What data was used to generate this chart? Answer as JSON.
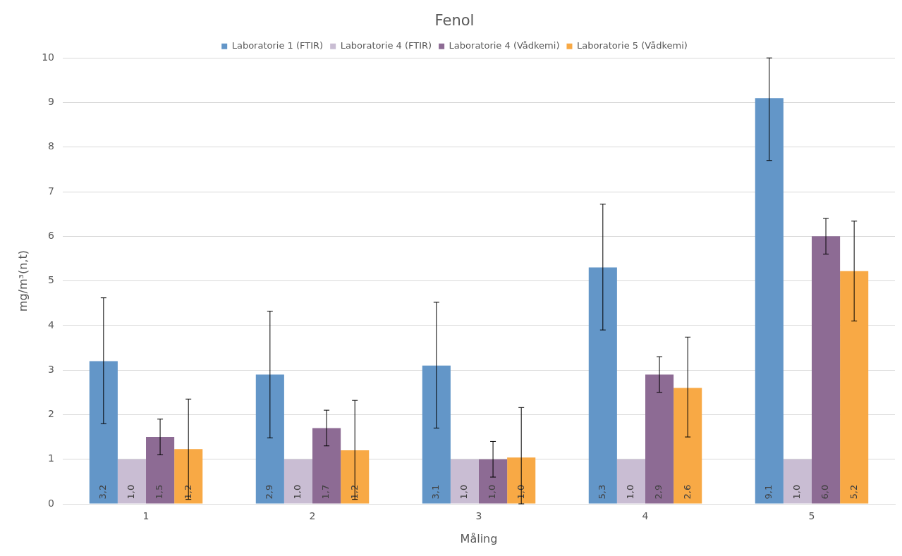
{
  "chart_data": {
    "type": "bar",
    "title": "Fenol",
    "xlabel": "Måling",
    "ylabel": "mg/m³(n,t)",
    "categories": [
      "1",
      "2",
      "3",
      "4",
      "5"
    ],
    "series": [
      {
        "name": "Laboratorie 1 (FTIR)",
        "color": "#6396c8",
        "values": [
          3.2,
          2.9,
          3.1,
          5.3,
          9.1
        ],
        "value_labels": [
          "3,2",
          "2,9",
          "3,1",
          "5,3",
          "9,1"
        ],
        "errors": [
          [
            1.8,
            4.62
          ],
          [
            1.48,
            4.32
          ],
          [
            1.7,
            4.52
          ],
          [
            3.9,
            6.72
          ],
          [
            7.7,
            10
          ]
        ]
      },
      {
        "name": "Laboratorie 4 (FTIR)",
        "color": "#c9bdd3",
        "values": [
          1.0,
          1.0,
          1.0,
          1.0,
          1.0
        ],
        "value_labels": [
          "1,0",
          "1,0",
          "1,0",
          "1,0",
          "1,0"
        ]
      },
      {
        "name": "Laboratorie 4 (Vådkemi)",
        "color": "#8d6b94",
        "values": [
          1.5,
          1.7,
          1.0,
          2.9,
          6.0
        ],
        "value_labels": [
          "1,5",
          "1,7",
          "1,0",
          "2,9",
          "6,0"
        ],
        "errors": [
          [
            1.1,
            1.9
          ],
          [
            1.3,
            2.1
          ],
          [
            0.6,
            1.4
          ],
          [
            2.5,
            3.3
          ],
          [
            5.6,
            6.4
          ]
        ]
      },
      {
        "name": "Laboratorie 5 (Vådkemi)",
        "color": "#f8a945",
        "values": [
          1.23,
          1.2,
          1.04,
          2.6,
          5.22
        ],
        "value_labels": [
          "1,2",
          "1,2",
          "1,0",
          "2,6",
          "5,2"
        ],
        "errors": [
          [
            0.1,
            2.35
          ],
          [
            0.1,
            2.32
          ],
          [
            0.0,
            2.16
          ],
          [
            1.5,
            3.74
          ],
          [
            4.1,
            6.34
          ]
        ]
      }
    ],
    "ylim": [
      0,
      10
    ],
    "yticks": [
      0,
      1,
      2,
      3,
      4,
      5,
      6,
      7,
      8,
      9,
      10
    ],
    "grid": "y",
    "legend": "top"
  }
}
